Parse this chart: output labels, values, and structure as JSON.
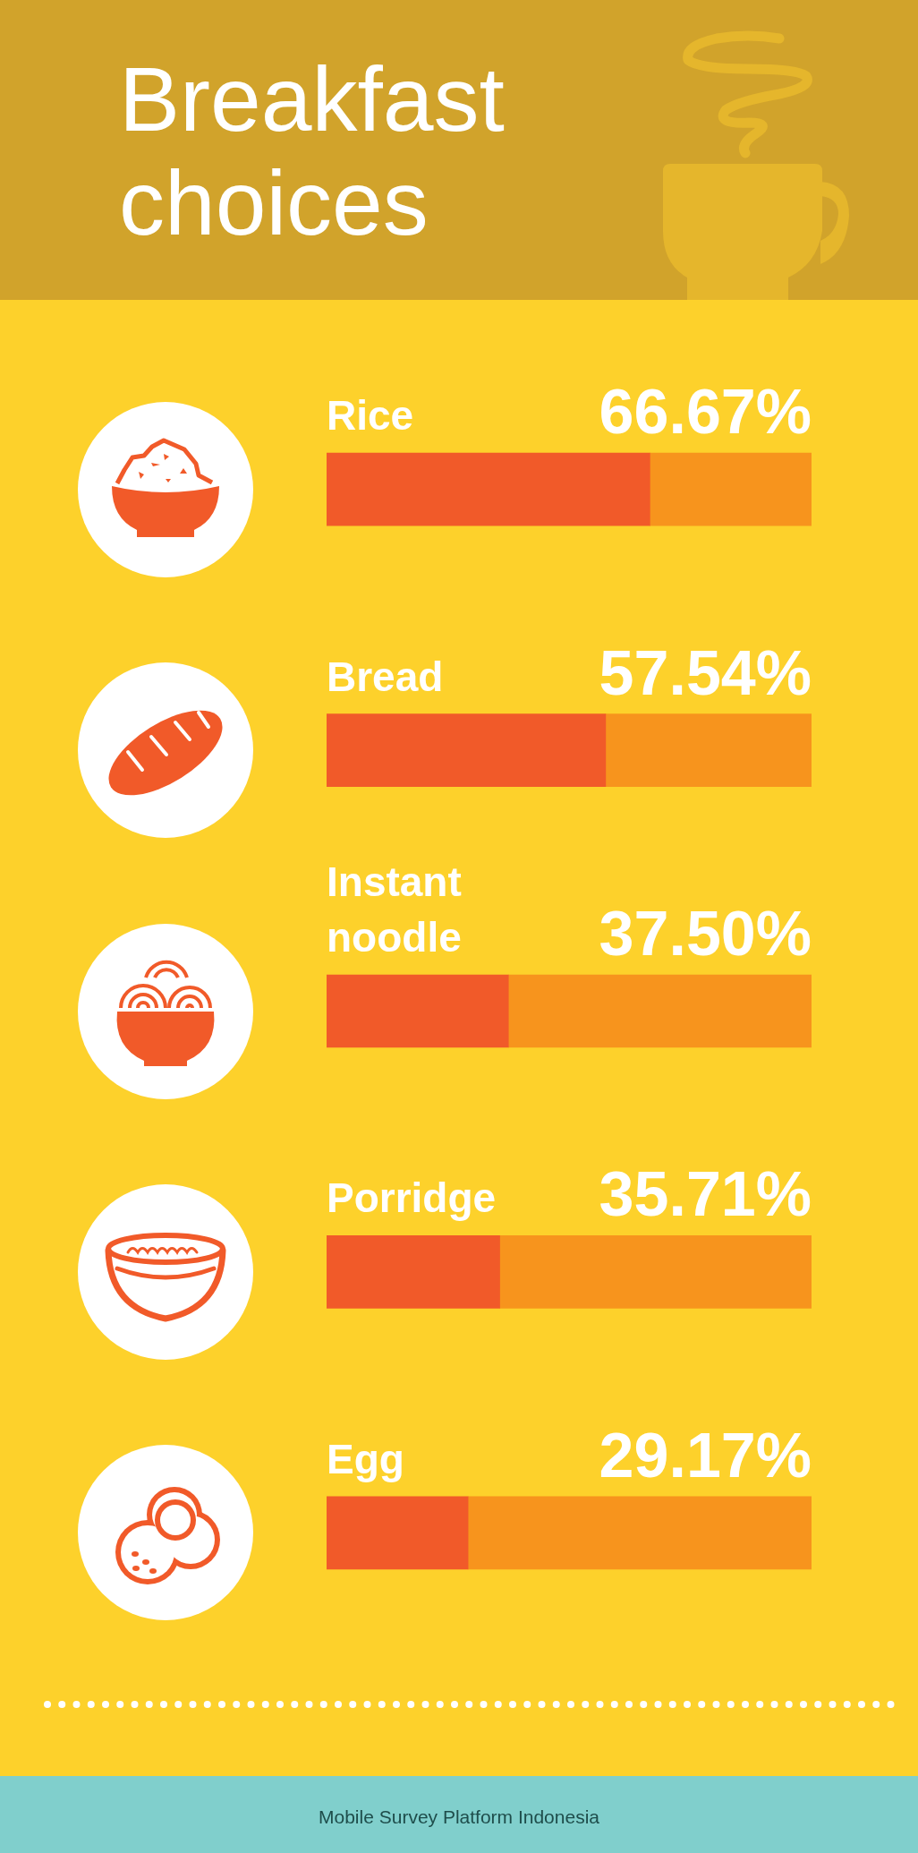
{
  "chart_data": {
    "type": "bar",
    "orientation": "horizontal",
    "stacked": true,
    "title": "Breakfast choices",
    "categories": [
      "Rice",
      "Bread",
      "Instant noodle",
      "Porridge",
      "Egg"
    ],
    "series": [
      {
        "color": "#f15a29",
        "values": [
          66.67,
          57.54,
          37.5,
          35.71,
          29.17
        ],
        "value_labels": [
          "66.67%",
          "57.54%",
          "37.50%",
          "35.71%",
          "29.17%"
        ]
      },
      {
        "color": "#f7941d",
        "values": [
          33.33,
          42.46,
          62.5,
          64.29,
          70.83
        ]
      }
    ],
    "xlim": [
      0,
      100
    ],
    "tick_labels": "y",
    "annotations": [
      "Mobile Survey Platform Indonesia"
    ]
  }
}
